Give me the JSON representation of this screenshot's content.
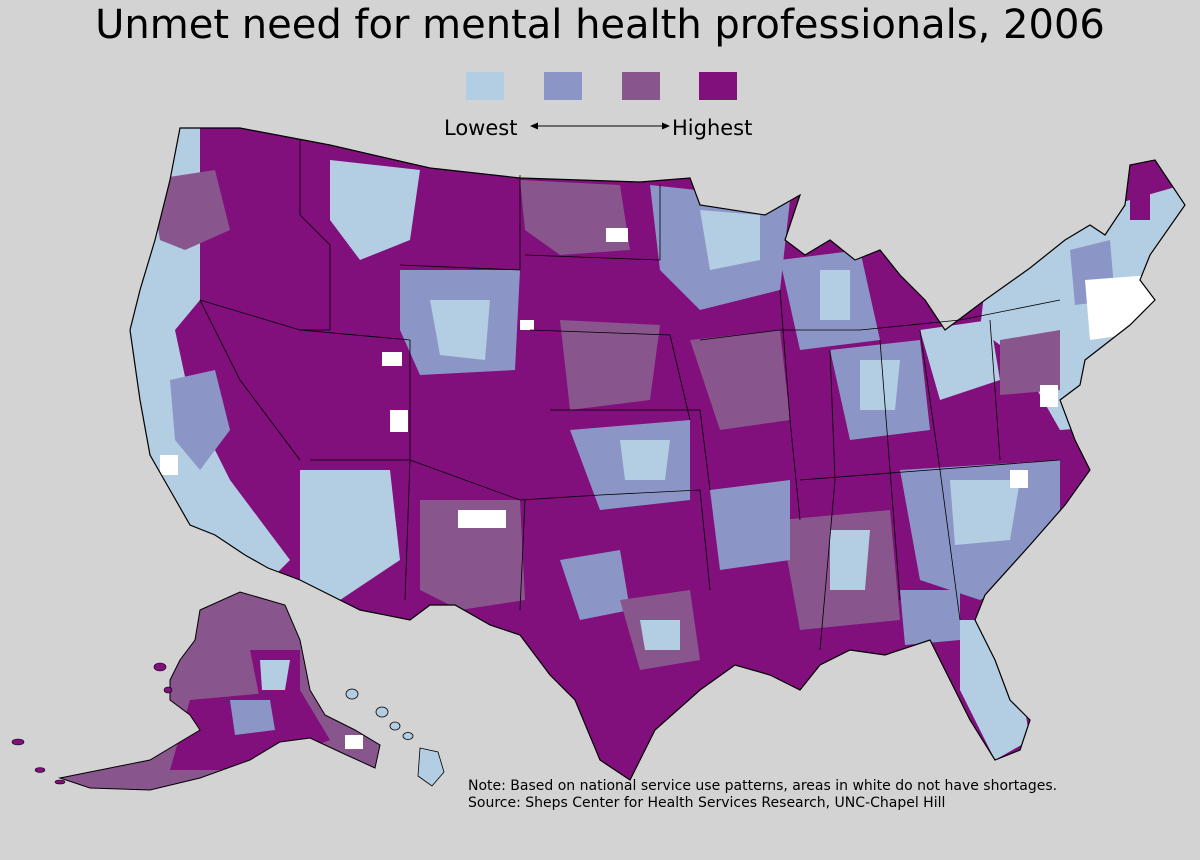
{
  "title": "Unmet need for mental health professionals, 2006",
  "legend": {
    "low_label": "Lowest",
    "high_label": "Highest",
    "colors": [
      "#b3cde3",
      "#8c96c6",
      "#88558c",
      "#810f7c"
    ]
  },
  "note": {
    "line1": "Note: Based on national service use patterns, areas in white do not have shortages.",
    "line2": "Source: Sheps Center for Health Services Research, UNC-Chapel Hill"
  },
  "colors": {
    "background": "#d3d3d3",
    "no_shortage": "#ffffff",
    "border": "#000000"
  }
}
